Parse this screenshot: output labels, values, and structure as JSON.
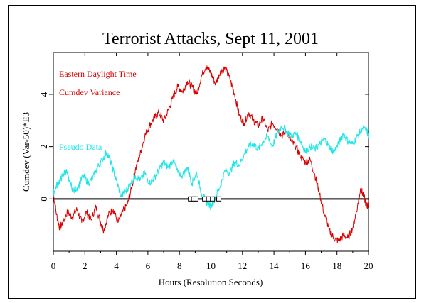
{
  "chart_data": {
    "type": "line",
    "title": "Terrorist Attacks, Sept 11, 2001",
    "xlabel": "Hours (Resolution Seconds)",
    "ylabel": "Cumdev (Var-50)*E3",
    "xlim": [
      0,
      20
    ],
    "ylim": [
      -2,
      5.6
    ],
    "x_ticks": [
      "0",
      "2",
      "4",
      "6",
      "8",
      "10",
      "12",
      "14",
      "16",
      "18",
      "20"
    ],
    "y_ticks": [
      "0",
      "2",
      "4"
    ],
    "annotations": [
      "Eastern Daylight Time",
      "Cumdev Variance"
    ],
    "reference_line_y": 0,
    "event_markers_x": [
      8.7,
      8.9,
      9.05,
      9.6,
      9.85,
      10.1,
      10.5
    ],
    "series": [
      {
        "name": "Cumdev Variance",
        "color": "#d90000",
        "x": [
          0,
          0.2,
          0.4,
          0.6,
          0.9,
          1.2,
          1.5,
          1.8,
          2.1,
          2.4,
          2.7,
          3.0,
          3.2,
          3.5,
          3.8,
          4.1,
          4.4,
          4.7,
          5.0,
          5.2,
          5.5,
          5.8,
          6.1,
          6.4,
          6.7,
          7.0,
          7.3,
          7.6,
          7.9,
          8.2,
          8.5,
          8.8,
          9.1,
          9.4,
          9.7,
          10.0,
          10.3,
          10.6,
          10.9,
          11.2,
          11.5,
          11.8,
          12.1,
          12.4,
          12.7,
          13.0,
          13.3,
          13.6,
          13.9,
          14.2,
          14.5,
          14.8,
          15.1,
          15.4,
          15.7,
          16.0,
          16.3,
          16.6,
          16.9,
          17.2,
          17.5,
          17.8,
          18.1,
          18.4,
          18.7,
          19.0,
          19.3,
          19.5,
          19.7,
          19.9,
          20.0
        ],
        "y": [
          0.2,
          -0.6,
          -1.1,
          -0.9,
          -0.5,
          -0.7,
          -0.4,
          -0.9,
          -0.5,
          -0.8,
          -0.3,
          -0.9,
          -1.2,
          -0.6,
          -0.4,
          -0.9,
          -0.5,
          -0.2,
          0.5,
          1.1,
          1.7,
          2.4,
          2.8,
          3.1,
          3.3,
          3.0,
          3.4,
          3.9,
          4.3,
          4.1,
          4.5,
          4.3,
          4.0,
          4.7,
          5.1,
          4.8,
          4.4,
          4.9,
          5.0,
          4.6,
          4.0,
          3.2,
          2.9,
          3.3,
          3.0,
          2.8,
          3.1,
          2.6,
          2.9,
          2.7,
          2.4,
          2.6,
          2.2,
          2.0,
          1.6,
          1.4,
          1.5,
          0.9,
          0.2,
          -0.6,
          -1.2,
          -1.5,
          -1.6,
          -1.4,
          -1.5,
          -1.1,
          -0.3,
          0.4,
          0.1,
          -0.3,
          -0.2
        ]
      },
      {
        "name": "Pseudo Data",
        "color": "#22e5e5",
        "x": [
          0,
          0.2,
          0.4,
          0.6,
          0.8,
          1.0,
          1.3,
          1.6,
          1.9,
          2.2,
          2.5,
          2.8,
          3.1,
          3.4,
          3.7,
          4.0,
          4.3,
          4.6,
          4.9,
          5.2,
          5.5,
          5.8,
          6.1,
          6.4,
          6.7,
          7.0,
          7.3,
          7.6,
          7.9,
          8.2,
          8.5,
          8.8,
          9.1,
          9.4,
          9.7,
          10.0,
          10.3,
          10.6,
          10.9,
          11.2,
          11.5,
          11.8,
          12.1,
          12.4,
          12.7,
          13.0,
          13.3,
          13.6,
          13.9,
          14.2,
          14.5,
          14.8,
          15.1,
          15.4,
          15.7,
          16.0,
          16.3,
          16.6,
          16.9,
          17.2,
          17.5,
          17.8,
          18.1,
          18.4,
          18.7,
          19.0,
          19.3,
          19.6,
          19.9,
          20.0
        ],
        "y": [
          0.2,
          0.5,
          0.7,
          0.9,
          1.1,
          0.7,
          0.3,
          0.5,
          0.9,
          0.6,
          0.8,
          1.2,
          1.5,
          1.8,
          1.3,
          0.7,
          0.1,
          0.3,
          0.6,
          0.9,
          0.7,
          1.0,
          0.6,
          0.8,
          1.1,
          1.4,
          1.2,
          1.5,
          1.0,
          0.9,
          1.2,
          0.6,
          1.0,
          0.2,
          -0.1,
          -0.3,
          0.1,
          0.5,
          1.1,
          1.0,
          1.4,
          1.3,
          1.7,
          2.0,
          2.1,
          1.9,
          2.2,
          2.4,
          2.0,
          2.5,
          2.8,
          2.6,
          2.4,
          2.5,
          2.2,
          1.8,
          2.0,
          1.9,
          2.1,
          2.3,
          2.0,
          1.8,
          2.1,
          2.5,
          2.2,
          2.1,
          2.4,
          2.7,
          2.6,
          2.4
        ]
      }
    ]
  }
}
